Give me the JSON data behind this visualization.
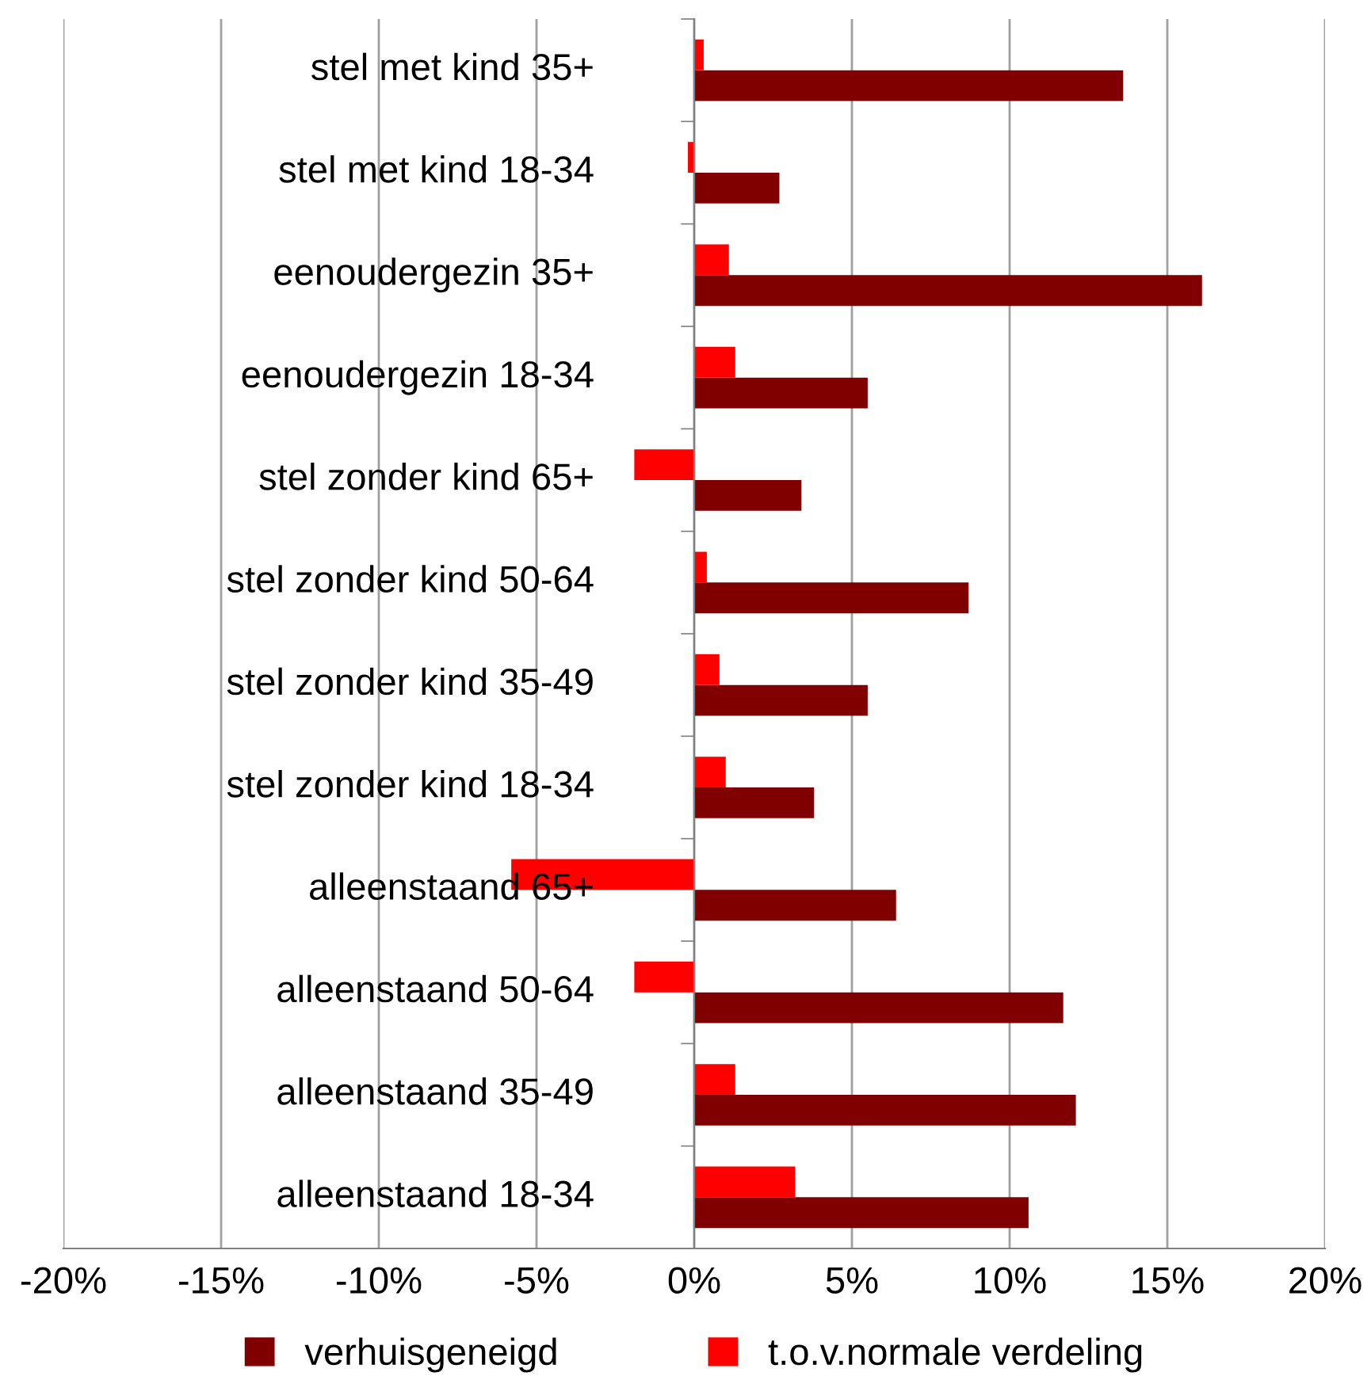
{
  "chart_data": {
    "type": "bar",
    "orientation": "horizontal",
    "categories": [
      "stel met kind 35+",
      "stel met kind 18-34",
      "eenoudergezin 35+",
      "eenoudergezin 18-34",
      "stel zonder kind 65+",
      "stel zonder kind 50-64",
      "stel zonder kind 35-49",
      "stel zonder kind 18-34",
      "alleenstaand 65+",
      "alleenstaand 50-64",
      "alleenstaand 35-49",
      "alleenstaand 18-34"
    ],
    "series": [
      {
        "name": "verhuisgeneigd",
        "color": "#800000",
        "values": [
          13.6,
          2.7,
          16.1,
          5.5,
          3.4,
          8.7,
          5.5,
          3.8,
          6.4,
          11.7,
          12.1,
          10.6
        ]
      },
      {
        "name": "t.o.v.normale verdeling",
        "color": "#ff0000",
        "values": [
          0.3,
          -0.2,
          1.1,
          1.3,
          -1.9,
          0.4,
          0.8,
          1.0,
          -5.8,
          -1.9,
          1.3,
          3.2
        ]
      }
    ],
    "xlim": [
      -20,
      20
    ],
    "xticks": [
      {
        "value": -20,
        "label": "-20%"
      },
      {
        "value": -15,
        "label": "-15%"
      },
      {
        "value": -10,
        "label": "-10%"
      },
      {
        "value": -5,
        "label": "-5%"
      },
      {
        "value": 0,
        "label": "0%"
      },
      {
        "value": 5,
        "label": "5%"
      },
      {
        "value": 10,
        "label": "10%"
      },
      {
        "value": 15,
        "label": "15%"
      },
      {
        "value": 20,
        "label": "20%"
      }
    ],
    "grid": "x",
    "legend": "bottom"
  }
}
